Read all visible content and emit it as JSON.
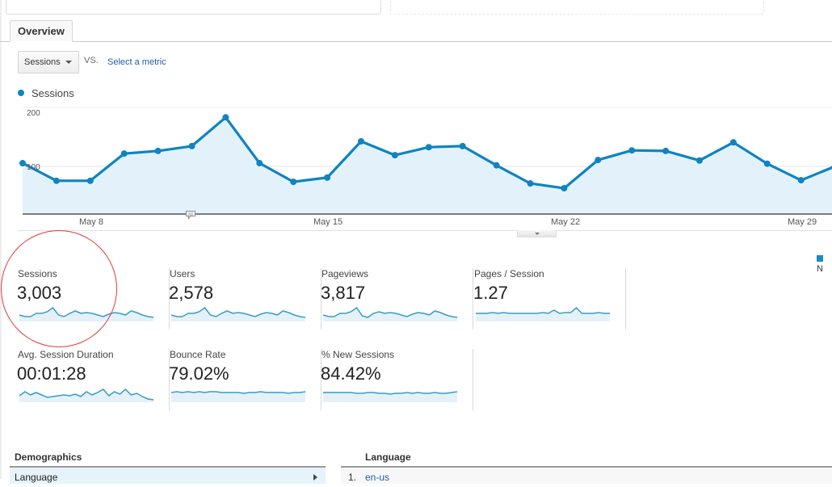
{
  "top_cards": [
    {
      "state": "active"
    },
    {
      "state": "empty"
    }
  ],
  "tabs": [
    {
      "label": "Overview",
      "active": true
    }
  ],
  "controls": {
    "metric_select": "Sessions",
    "vs_label": "VS.",
    "select_metric_link": "Select a metric"
  },
  "chart_legend": {
    "label": "Sessions",
    "color": "#0d84c4"
  },
  "chart_data": {
    "type": "area",
    "title": "",
    "series": [
      {
        "name": "Sessions",
        "values": [
          106,
          73,
          73,
          124,
          129,
          138,
          192,
          106,
          71,
          79,
          147,
          121,
          136,
          138,
          102,
          68,
          59,
          112,
          130,
          129,
          111,
          145,
          105,
          74,
          100
        ]
      }
    ],
    "x_tick_labels": [
      "May 8",
      "May 15",
      "May 22",
      "May 29"
    ],
    "y_tick_labels": [
      "100",
      "200"
    ],
    "ylim": [
      0,
      200
    ],
    "grid": true,
    "legend_position": "top-left",
    "xlabel": "",
    "ylabel": ""
  },
  "scorecards": [
    {
      "label": "Sessions",
      "value": "3,003"
    },
    {
      "label": "Users",
      "value": "2,578"
    },
    {
      "label": "Pageviews",
      "value": "3,817"
    },
    {
      "label": "Pages / Session",
      "value": "1.27"
    },
    {
      "label": "Avg. Session Duration",
      "value": "00:01:28"
    },
    {
      "label": "Bounce Rate",
      "value": "79.02%"
    },
    {
      "label": "% New Sessions",
      "value": "84.42%"
    }
  ],
  "right_legend": {
    "label": "N",
    "color": "#1a8bc6"
  },
  "demographics": {
    "title": "Demographics",
    "rows": [
      {
        "label": "Language"
      }
    ]
  },
  "language": {
    "title": "Language",
    "rows": [
      {
        "rank": "1.",
        "code": "en-us"
      }
    ]
  },
  "colors": {
    "line": "#1083c2",
    "fill": "#e3f2fa",
    "annotation_circle": "#e2393a"
  }
}
